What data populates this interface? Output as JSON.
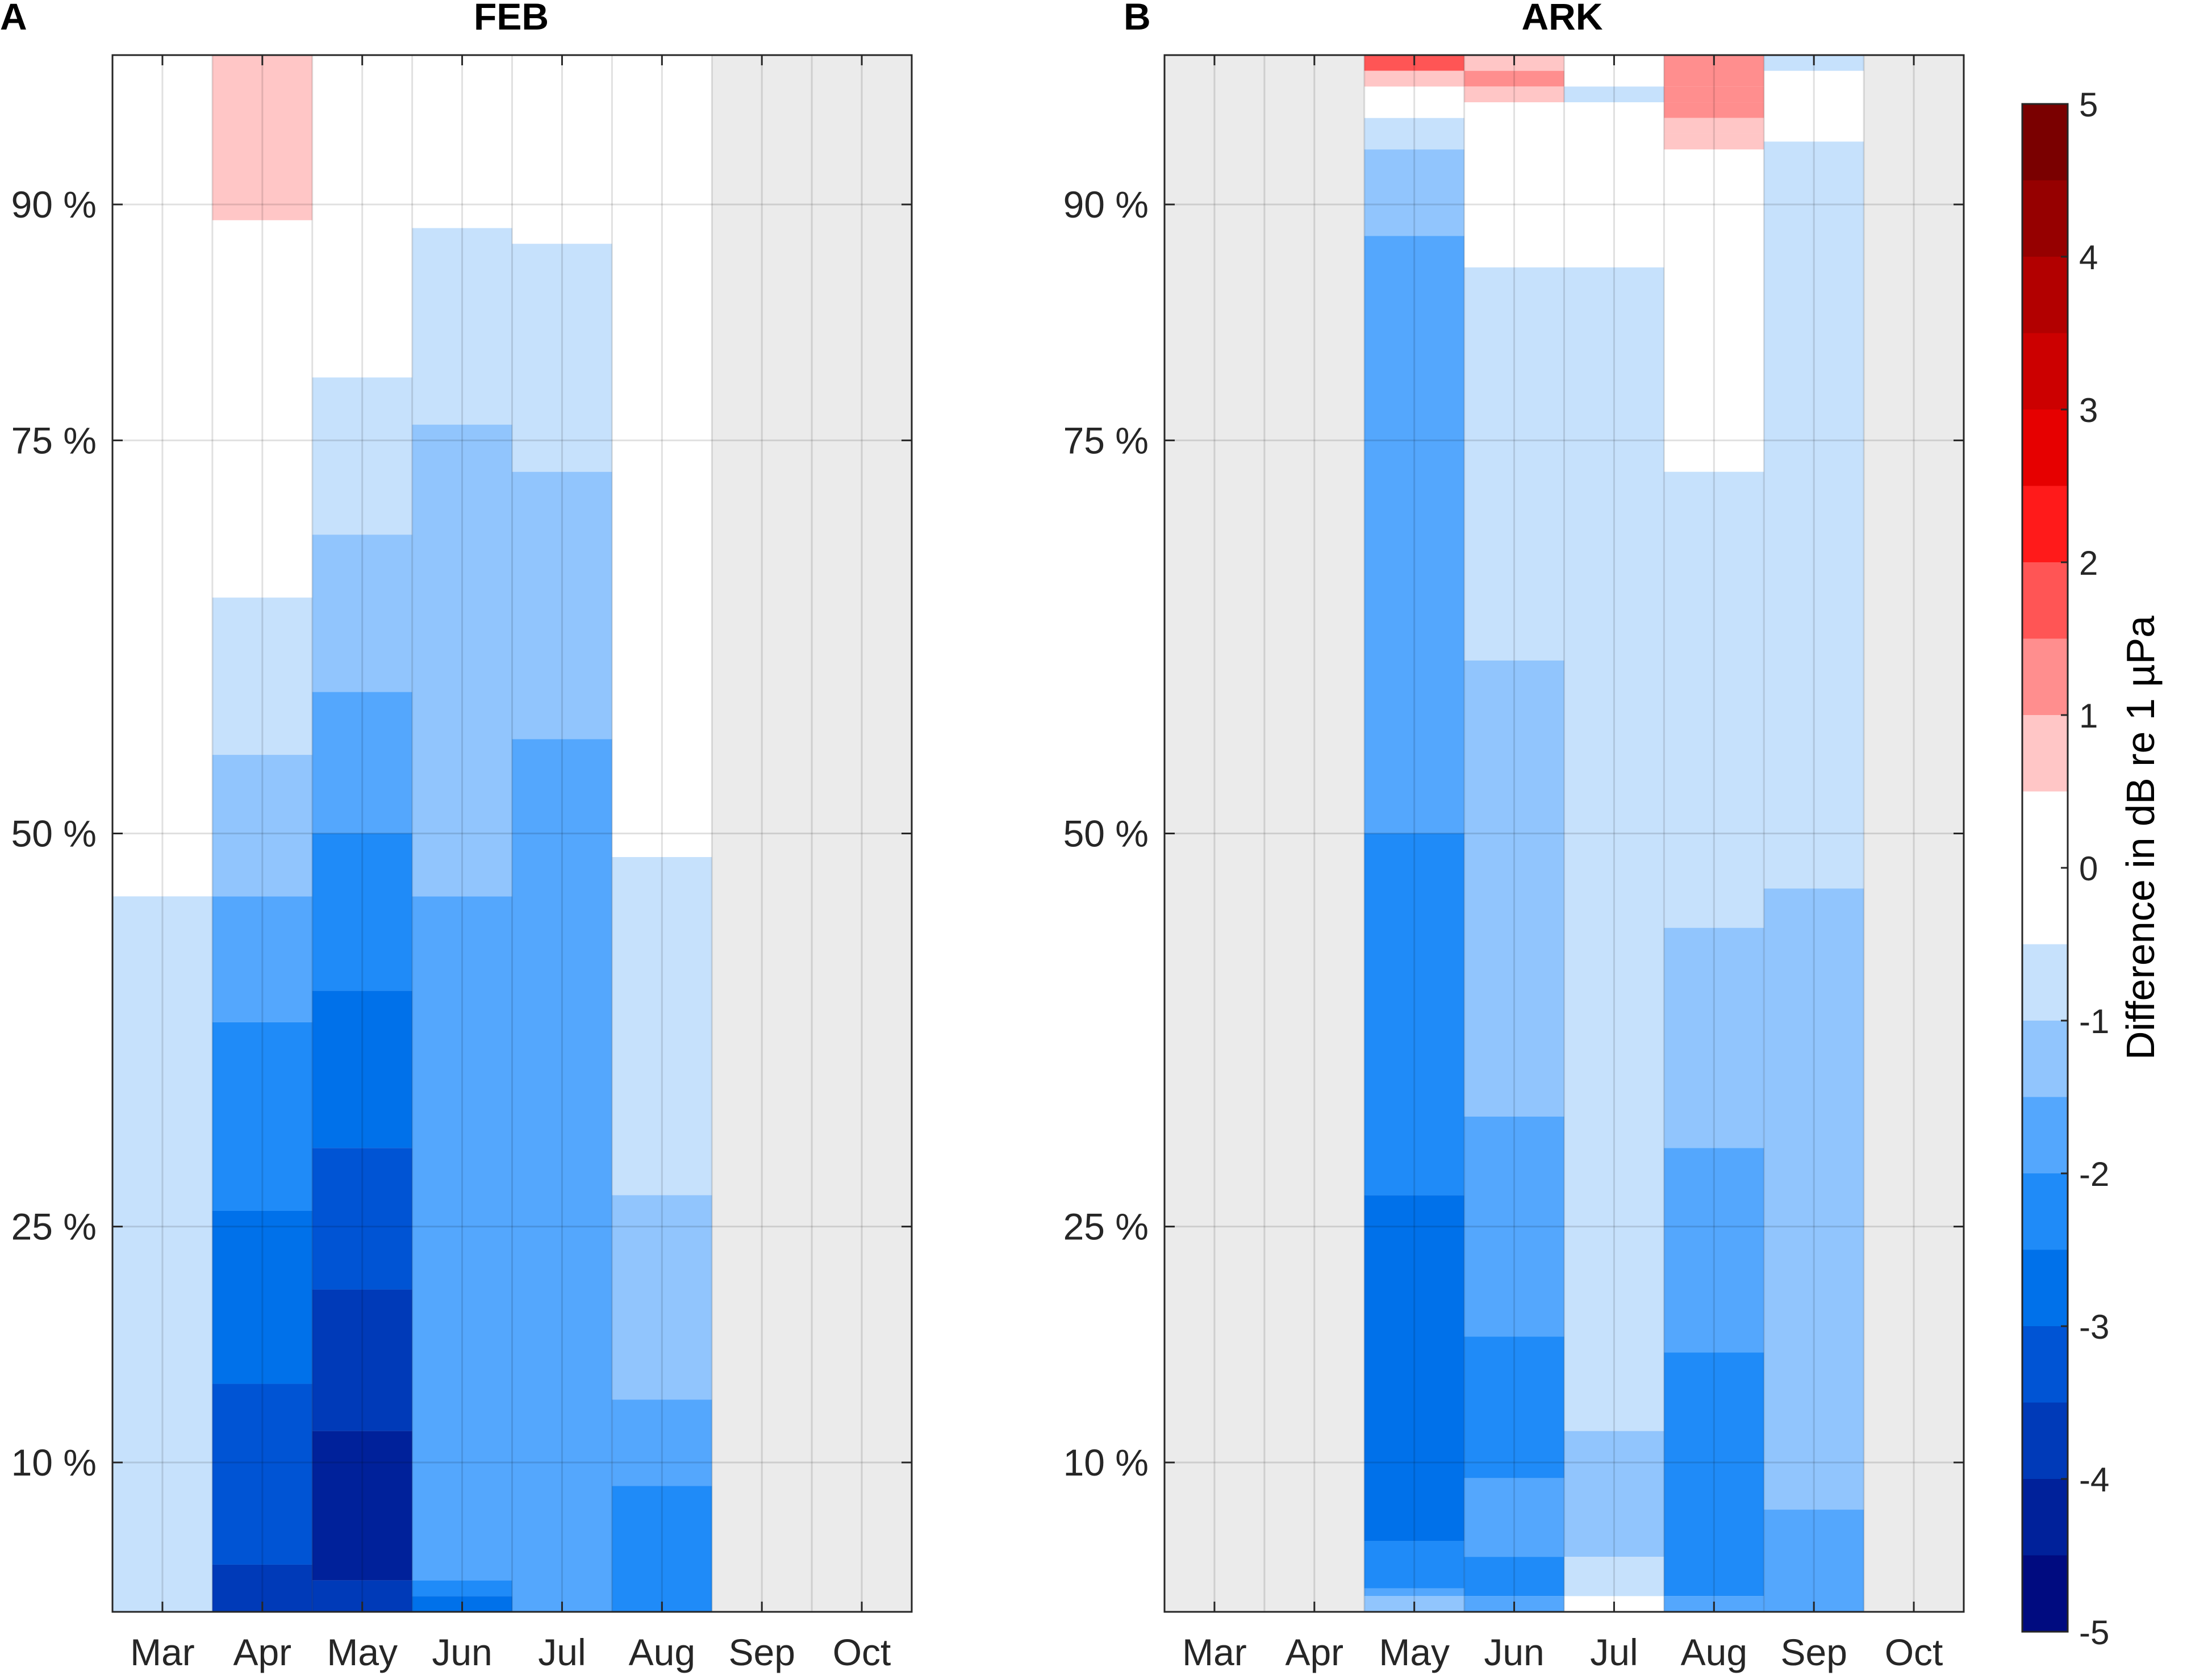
{
  "chart_data": {
    "type": "heatmap",
    "panels": [
      {
        "letter": "A",
        "title": "FEB",
        "columns": [
          "Mar",
          "Apr",
          "May",
          "Jun",
          "Jul",
          "Aug",
          "Sep",
          "Oct"
        ],
        "yticks": [
          {
            "value": 10,
            "label": "10 %"
          },
          {
            "value": 25,
            "label": "25 %"
          },
          {
            "value": 50,
            "label": "50 %"
          },
          {
            "value": 75,
            "label": "75 %"
          },
          {
            "value": 90,
            "label": "90 %"
          }
        ],
        "ylim": [
          0.5,
          99.5
        ],
        "grey_ranges": [
          [
            6,
            8
          ]
        ],
        "cells": [
          {
            "col": 0,
            "y0": 0.5,
            "y1": 46,
            "v": -0.75
          },
          {
            "col": 1,
            "y0": 89,
            "y1": 99.5,
            "v": 0.75
          },
          {
            "col": 1,
            "y0": 55,
            "y1": 65,
            "v": -0.75
          },
          {
            "col": 1,
            "y0": 46,
            "y1": 55,
            "v": -1.25
          },
          {
            "col": 1,
            "y0": 38,
            "y1": 46,
            "v": -1.75
          },
          {
            "col": 1,
            "y0": 26,
            "y1": 38,
            "v": -2.25
          },
          {
            "col": 1,
            "y0": 15,
            "y1": 26,
            "v": -2.75
          },
          {
            "col": 1,
            "y0": 3.5,
            "y1": 15,
            "v": -3.25
          },
          {
            "col": 1,
            "y0": 0.5,
            "y1": 3.5,
            "v": -3.75
          },
          {
            "col": 2,
            "y0": 69,
            "y1": 79,
            "v": -0.75
          },
          {
            "col": 2,
            "y0": 59,
            "y1": 69,
            "v": -1.25
          },
          {
            "col": 2,
            "y0": 50,
            "y1": 59,
            "v": -1.75
          },
          {
            "col": 2,
            "y0": 40,
            "y1": 50,
            "v": -2.25
          },
          {
            "col": 2,
            "y0": 30,
            "y1": 40,
            "v": -2.75
          },
          {
            "col": 2,
            "y0": 21,
            "y1": 30,
            "v": -3.25
          },
          {
            "col": 2,
            "y0": 12,
            "y1": 21,
            "v": -3.75
          },
          {
            "col": 2,
            "y0": 2.5,
            "y1": 12,
            "v": -4.25
          },
          {
            "col": 2,
            "y0": 0.5,
            "y1": 2.5,
            "v": -3.75
          },
          {
            "col": 3,
            "y0": 76,
            "y1": 88.5,
            "v": -0.75
          },
          {
            "col": 3,
            "y0": 46,
            "y1": 76,
            "v": -1.25
          },
          {
            "col": 3,
            "y0": 2.5,
            "y1": 46,
            "v": -1.75
          },
          {
            "col": 3,
            "y0": 1.5,
            "y1": 2.5,
            "v": -2.25
          },
          {
            "col": 3,
            "y0": 0.5,
            "y1": 1.5,
            "v": -2.75
          },
          {
            "col": 4,
            "y0": 73,
            "y1": 87.5,
            "v": -0.75
          },
          {
            "col": 4,
            "y0": 56,
            "y1": 73,
            "v": -1.25
          },
          {
            "col": 4,
            "y0": 0.5,
            "y1": 56,
            "v": -1.75
          },
          {
            "col": 5,
            "y0": 27,
            "y1": 48.5,
            "v": -0.75
          },
          {
            "col": 5,
            "y0": 14,
            "y1": 27,
            "v": -1.25
          },
          {
            "col": 5,
            "y0": 8.5,
            "y1": 14,
            "v": -1.75
          },
          {
            "col": 5,
            "y0": 0.5,
            "y1": 8.5,
            "v": -2.25
          }
        ]
      },
      {
        "letter": "B",
        "title": "ARK",
        "columns": [
          "Mar",
          "Apr",
          "May",
          "Jun",
          "Jul",
          "Aug",
          "Sep",
          "Oct"
        ],
        "yticks": [
          {
            "value": 10,
            "label": "10 %"
          },
          {
            "value": 25,
            "label": "25 %"
          },
          {
            "value": 50,
            "label": "50 %"
          },
          {
            "value": 75,
            "label": "75 %"
          },
          {
            "value": 90,
            "label": "90 %"
          }
        ],
        "ylim": [
          0.5,
          99.5
        ],
        "grey_ranges": [
          [
            0,
            2
          ],
          [
            7,
            8
          ]
        ],
        "cells": [
          {
            "col": 2,
            "y0": 98.5,
            "y1": 99.5,
            "v": 1.75
          },
          {
            "col": 2,
            "y0": 97.5,
            "y1": 98.5,
            "v": 0.75
          },
          {
            "col": 2,
            "y0": 93.5,
            "y1": 95.5,
            "v": -0.75
          },
          {
            "col": 2,
            "y0": 88,
            "y1": 93.5,
            "v": -1.25
          },
          {
            "col": 2,
            "y0": 50,
            "y1": 88,
            "v": -1.75
          },
          {
            "col": 2,
            "y0": 27,
            "y1": 50,
            "v": -2.25
          },
          {
            "col": 2,
            "y0": 5,
            "y1": 27,
            "v": -2.75
          },
          {
            "col": 2,
            "y0": 2,
            "y1": 5,
            "v": -2.25
          },
          {
            "col": 2,
            "y0": 1.5,
            "y1": 2,
            "v": -1.75
          },
          {
            "col": 2,
            "y0": 0.5,
            "y1": 1.5,
            "v": -1.25
          },
          {
            "col": 3,
            "y0": 98.5,
            "y1": 99.5,
            "v": 0.75
          },
          {
            "col": 3,
            "y0": 97.5,
            "y1": 98.5,
            "v": 1.25
          },
          {
            "col": 3,
            "y0": 96.5,
            "y1": 97.5,
            "v": 0.75
          },
          {
            "col": 3,
            "y0": 61,
            "y1": 86,
            "v": -0.75
          },
          {
            "col": 3,
            "y0": 32,
            "y1": 61,
            "v": -1.25
          },
          {
            "col": 3,
            "y0": 18,
            "y1": 32,
            "v": -1.75
          },
          {
            "col": 3,
            "y0": 9,
            "y1": 18,
            "v": -2.25
          },
          {
            "col": 3,
            "y0": 4,
            "y1": 9,
            "v": -1.75
          },
          {
            "col": 3,
            "y0": 1.5,
            "y1": 4,
            "v": -2.25
          },
          {
            "col": 3,
            "y0": 0.5,
            "y1": 1.5,
            "v": -1.75
          },
          {
            "col": 4,
            "y0": 96.5,
            "y1": 97.5,
            "v": -0.75
          },
          {
            "col": 4,
            "y0": 12,
            "y1": 86,
            "v": -0.75
          },
          {
            "col": 4,
            "y0": 4,
            "y1": 12,
            "v": -1.25
          },
          {
            "col": 4,
            "y0": 1.5,
            "y1": 4,
            "v": -0.75
          },
          {
            "col": 5,
            "y0": 97.5,
            "y1": 99.5,
            "v": 1.25
          },
          {
            "col": 5,
            "y0": 96.5,
            "y1": 97.5,
            "v": 1.25
          },
          {
            "col": 5,
            "y0": 95.5,
            "y1": 96.5,
            "v": 1.25
          },
          {
            "col": 5,
            "y0": 94.5,
            "y1": 95.5,
            "v": 0.75
          },
          {
            "col": 5,
            "y0": 93.5,
            "y1": 94.5,
            "v": 0.75
          },
          {
            "col": 5,
            "y0": 44,
            "y1": 73,
            "v": -0.75
          },
          {
            "col": 5,
            "y0": 30,
            "y1": 44,
            "v": -1.25
          },
          {
            "col": 5,
            "y0": 17,
            "y1": 30,
            "v": -1.75
          },
          {
            "col": 5,
            "y0": 1.5,
            "y1": 17,
            "v": -2.25
          },
          {
            "col": 5,
            "y0": 0.5,
            "y1": 1.5,
            "v": -1.75
          },
          {
            "col": 6,
            "y0": 98.5,
            "y1": 99.5,
            "v": -0.75
          },
          {
            "col": 6,
            "y0": 46.5,
            "y1": 94,
            "v": -0.75
          },
          {
            "col": 6,
            "y0": 7,
            "y1": 46.5,
            "v": -1.25
          },
          {
            "col": 6,
            "y0": 0.5,
            "y1": 7,
            "v": -1.75
          }
        ]
      }
    ],
    "colorbar": {
      "label": "Difference in dB re 1 µPa",
      "vmin": -5,
      "vmax": 5,
      "ticks": [
        {
          "value": 5,
          "label": "5"
        },
        {
          "value": 4,
          "label": "4"
        },
        {
          "value": 3,
          "label": "3"
        },
        {
          "value": 2,
          "label": "2"
        },
        {
          "value": 1,
          "label": "1"
        },
        {
          "value": 0,
          "label": "0"
        },
        {
          "value": -1,
          "label": "-1"
        },
        {
          "value": -2,
          "label": "-2"
        },
        {
          "value": -3,
          "label": "-3"
        },
        {
          "value": -4,
          "label": "-4"
        },
        {
          "value": -5,
          "label": "-5"
        }
      ],
      "levels": [
        {
          "from": 4.5,
          "to": 5,
          "color": "#7a0000"
        },
        {
          "from": 4,
          "to": 4.5,
          "color": "#960000"
        },
        {
          "from": 3.5,
          "to": 4,
          "color": "#b20000"
        },
        {
          "from": 3,
          "to": 3.5,
          "color": "#cc0000"
        },
        {
          "from": 2.5,
          "to": 3,
          "color": "#e60000"
        },
        {
          "from": 2,
          "to": 2.5,
          "color": "#ff1a1a"
        },
        {
          "from": 1.5,
          "to": 2,
          "color": "#ff5555"
        },
        {
          "from": 1,
          "to": 1.5,
          "color": "#ff8e8e"
        },
        {
          "from": 0.5,
          "to": 1,
          "color": "#ffc6c6"
        },
        {
          "from": -0.5,
          "to": 0.5,
          "color": "#ffffff"
        },
        {
          "from": -1,
          "to": -0.5,
          "color": "#c6e1fc"
        },
        {
          "from": -1.5,
          "to": -1,
          "color": "#91c5fd"
        },
        {
          "from": -2,
          "to": -1.5,
          "color": "#54a7fd"
        },
        {
          "from": -2.5,
          "to": -2,
          "color": "#1f8bf8"
        },
        {
          "from": -3,
          "to": -2.5,
          "color": "#0071ea"
        },
        {
          "from": -3.5,
          "to": -3,
          "color": "#0054d4"
        },
        {
          "from": -4,
          "to": -3.5,
          "color": "#003ab8"
        },
        {
          "from": -4.5,
          "to": -4,
          "color": "#00219a"
        },
        {
          "from": -5,
          "to": -4.5,
          "color": "#000b80"
        }
      ]
    }
  }
}
